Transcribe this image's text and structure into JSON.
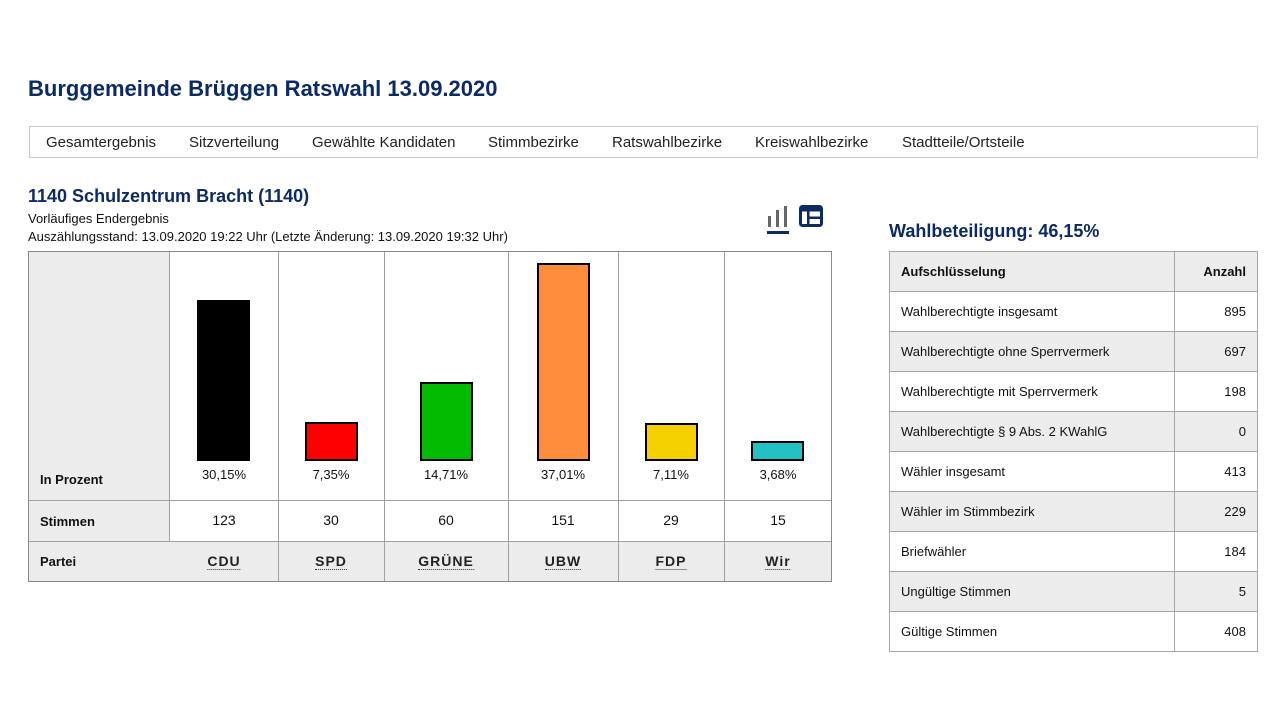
{
  "title": "Burggemeinde Brüggen Ratswahl 13.09.2020",
  "nav": [
    "Gesamtergebnis",
    "Sitzverteilung",
    "Gewählte Kandidaten",
    "Stimmbezirke",
    "Ratswahlbezirke",
    "Kreiswahlbezirke",
    "Stadtteile/Ortsteile"
  ],
  "district": {
    "title": "1140 Schulzentrum Bracht (1140)",
    "status": "Vorläufiges Endergebnis",
    "count_state": "Auszählungsstand: 13.09.2020 19:22 Uhr (Letzte Änderung: 13.09.2020 19:32 Uhr)"
  },
  "view_icons": [
    "bar-chart-icon",
    "table-icon"
  ],
  "row_labels": {
    "percent": "In Prozent",
    "votes": "Stimmen",
    "party": "Partei"
  },
  "chart_data": {
    "type": "bar",
    "categories": [
      "CDU",
      "SPD",
      "GRÜNE",
      "UBW",
      "FDP",
      "Wir"
    ],
    "percent_labels": [
      "30,15%",
      "7,35%",
      "14,71%",
      "37,01%",
      "7,11%",
      "3,68%"
    ],
    "values": [
      30.15,
      7.35,
      14.71,
      37.01,
      7.11,
      3.68
    ],
    "votes": [
      "123",
      "30",
      "60",
      "151",
      "29",
      "15"
    ],
    "colors": [
      "#000000",
      "#ff0000",
      "#00bb00",
      "#ff8c3a",
      "#f5d000",
      "#22c1c3"
    ],
    "ylim": [
      0,
      37.01
    ]
  },
  "turnout": "Wahlbeteiligung: 46,15%",
  "stats": {
    "headers": [
      "Aufschlüsselung",
      "Anzahl"
    ],
    "rows": [
      {
        "label": "Wahlberechtigte insgesamt",
        "value": "895"
      },
      {
        "label": "Wahlberechtigte ohne Sperrvermerk",
        "value": "697"
      },
      {
        "label": "Wahlberechtigte mit Sperrvermerk",
        "value": "198"
      },
      {
        "label": "Wahlberechtigte § 9 Abs. 2 KWahlG",
        "value": "0"
      },
      {
        "label": "Wähler insgesamt",
        "value": "413"
      },
      {
        "label": "Wähler im Stimmbezirk",
        "value": "229"
      },
      {
        "label": "Briefwähler",
        "value": "184"
      },
      {
        "label": "Ungültige Stimmen",
        "value": "5"
      },
      {
        "label": "Gültige Stimmen",
        "value": "408"
      }
    ]
  }
}
